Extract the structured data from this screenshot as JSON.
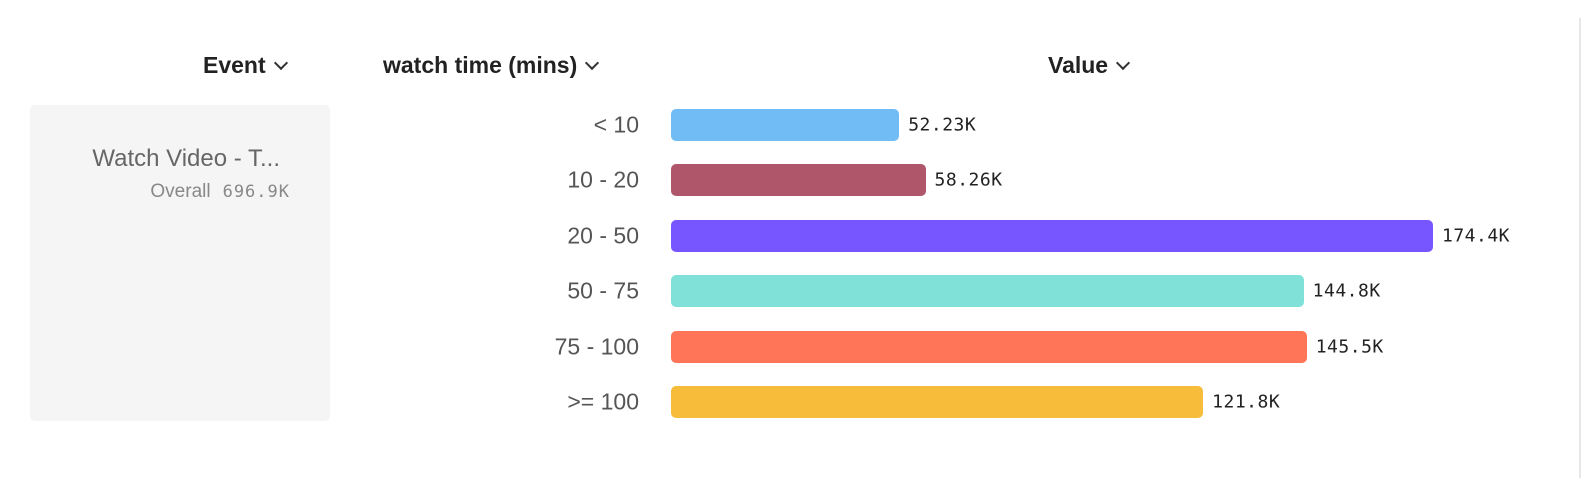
{
  "headers": {
    "event": "Event",
    "breakdown": "watch time (mins)",
    "value": "Value"
  },
  "event_card": {
    "name": "Watch Video - T...",
    "overall_label": "Overall",
    "overall_value": "696.9K"
  },
  "chart_data": {
    "type": "bar",
    "orientation": "horizontal",
    "categories": [
      "< 10",
      "10 - 20",
      "20 - 50",
      "50 - 75",
      "75 - 100",
      ">= 100"
    ],
    "values": [
      52230,
      58260,
      174400,
      144800,
      145500,
      121800
    ],
    "value_labels": [
      "52.23K",
      "58.26K",
      "174.4K",
      "144.8K",
      "145.5K",
      "121.8K"
    ],
    "colors": [
      "#72bcf5",
      "#b0566b",
      "#7856ff",
      "#80e1d9",
      "#ff7557",
      "#f8bc3b"
    ],
    "grid": false
  }
}
